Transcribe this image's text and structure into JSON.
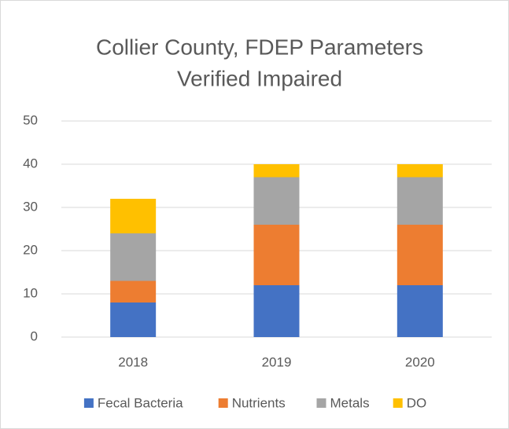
{
  "chart_data": {
    "type": "stacked_bar",
    "title": [
      "Collier County, FDEP Parameters",
      "Verified Impaired"
    ],
    "categories": [
      "2018",
      "2019",
      "2020"
    ],
    "series": [
      {
        "name": "Fecal Bacteria",
        "color": "#4472c4",
        "values": [
          8,
          12,
          12
        ]
      },
      {
        "name": "Nutrients",
        "color": "#ed7d31",
        "values": [
          5,
          14,
          14
        ]
      },
      {
        "name": "Metals",
        "color": "#a5a5a5",
        "values": [
          11,
          11,
          11
        ]
      },
      {
        "name": "DO",
        "color": "#ffc000",
        "values": [
          8,
          3,
          3
        ]
      }
    ],
    "ylim": [
      0,
      50
    ],
    "yticks": [
      0,
      10,
      20,
      30,
      40,
      50
    ],
    "grid": true,
    "legend": "bottom"
  }
}
